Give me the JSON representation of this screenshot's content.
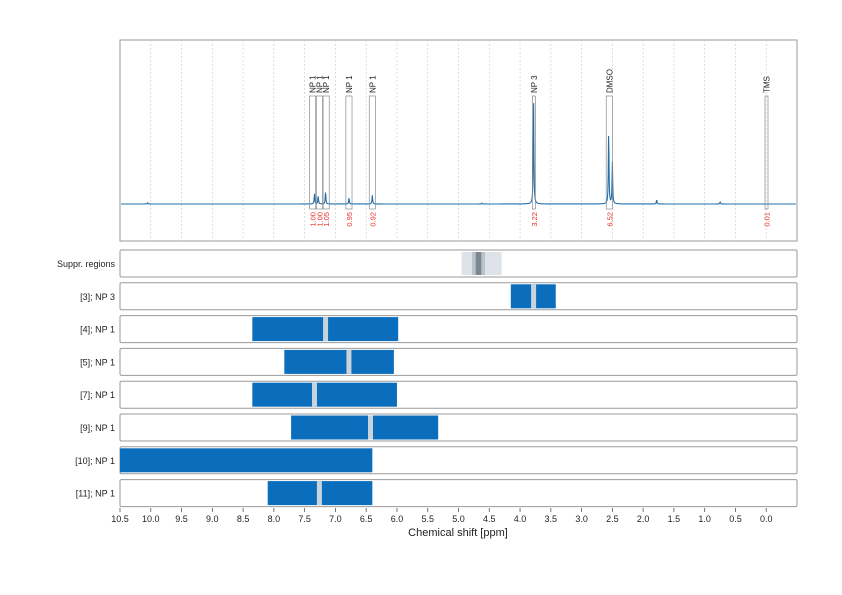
{
  "chart_data": {
    "type": "line",
    "xlabel": "Chemical shift [ppm]",
    "xlim": [
      10.5,
      -0.5
    ],
    "x_ticks": [
      10.5,
      10.0,
      9.5,
      9.0,
      8.5,
      8.0,
      7.5,
      7.0,
      6.5,
      6.0,
      5.5,
      5.0,
      4.5,
      4.0,
      3.5,
      3.0,
      2.5,
      2.0,
      1.5,
      1.0,
      0.5,
      0.0
    ],
    "x_tick_labels": [
      "10.5",
      "10.0",
      "9.5",
      "9.0",
      "8.5",
      "8.0",
      "7.5",
      "7.0",
      "6.5",
      "6.0",
      "5.5",
      "5.0",
      "4.5",
      "4.0",
      "3.5",
      "3.0",
      "2.5",
      "2.0",
      "1.5",
      "1.0",
      "0.5",
      "0.0"
    ],
    "colors": {
      "spectrum": "#1f6fae",
      "region": "#0a6ebd",
      "integral": "#e8302a",
      "center": "#c8d3dc",
      "suppr_outer": "#dde3e8",
      "suppr_mid": "#b9c3cb",
      "suppr_inner": "#7c8790",
      "grid": "#cfcfcf",
      "frame": "#9a9a9a"
    },
    "spectrum": {
      "peaks": [
        {
          "x": 10.05,
          "h": 0.012
        },
        {
          "x": 7.34,
          "h": 0.1
        },
        {
          "x": 7.28,
          "h": 0.08
        },
        {
          "x": 7.16,
          "h": 0.12
        },
        {
          "x": 6.78,
          "h": 0.06
        },
        {
          "x": 6.4,
          "h": 0.085
        },
        {
          "x": 3.78,
          "h": 1.0
        },
        {
          "x": 2.56,
          "h": 0.72
        },
        {
          "x": 2.5,
          "h": 0.4
        },
        {
          "x": 1.78,
          "h": 0.04
        },
        {
          "x": 0.75,
          "h": 0.02
        },
        {
          "x": 4.62,
          "h": 0.008
        }
      ]
    },
    "annotations": [
      {
        "label": "NP 1",
        "x0": 7.42,
        "x1": 7.32,
        "integral": "1.00"
      },
      {
        "label": "NP 1",
        "x0": 7.31,
        "x1": 7.21,
        "integral": "1.00"
      },
      {
        "label": "NP 1",
        "x0": 7.2,
        "x1": 7.1,
        "integral": "1.05"
      },
      {
        "label": "NP 1",
        "x0": 6.83,
        "x1": 6.73,
        "integral": "0.95"
      },
      {
        "label": "NP 1",
        "x0": 6.45,
        "x1": 6.35,
        "integral": "0.92"
      },
      {
        "label": "NP 3",
        "x0": 3.8,
        "x1": 3.76,
        "integral": "3.22"
      },
      {
        "label": "DMSO",
        "x0": 2.6,
        "x1": 2.5,
        "integral": "6.52"
      },
      {
        "label": "TMS",
        "x0": 0.02,
        "x1": -0.02,
        "integral": "0.01"
      }
    ],
    "suppression": {
      "label": "Suppr. regions",
      "bands": [
        {
          "x0": 4.95,
          "x1": 4.3,
          "level": "outer"
        },
        {
          "x0": 4.78,
          "x1": 4.57,
          "level": "mid"
        },
        {
          "x0": 4.72,
          "x1": 4.63,
          "level": "inner"
        }
      ]
    },
    "rows": [
      {
        "label": "[3]; NP 3",
        "x0": 4.15,
        "x1": 3.42,
        "center": 3.78
      },
      {
        "label": "[4]; NP 1",
        "x0": 8.35,
        "x1": 5.98,
        "center": 7.16
      },
      {
        "label": "[5]; NP 1",
        "x0": 7.83,
        "x1": 6.05,
        "center": 6.78
      },
      {
        "label": "[7]; NP 1",
        "x0": 8.35,
        "x1": 6.0,
        "center": 7.34
      },
      {
        "label": "[9]; NP 1",
        "x0": 7.72,
        "x1": 5.33,
        "center": 6.43
      },
      {
        "label": "[10]; NP 1",
        "x0": 10.5,
        "x1": 6.4,
        "center": null
      },
      {
        "label": "[11]; NP 1",
        "x0": 8.1,
        "x1": 6.4,
        "center": 7.26
      }
    ]
  }
}
